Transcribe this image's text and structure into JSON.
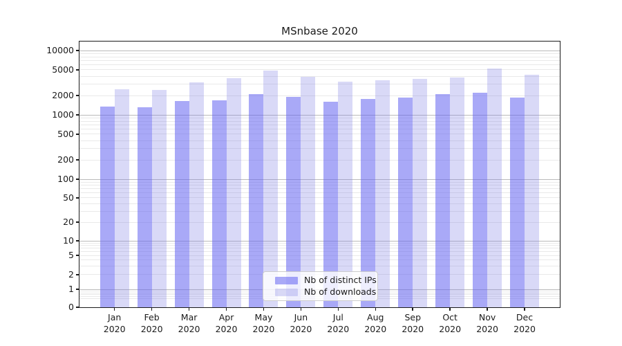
{
  "title": "MSnbase 2020",
  "chart_data": {
    "type": "bar",
    "title": "MSnbase 2020",
    "yscale": "symlog",
    "grid": "both",
    "grid_major_color": "#bababa",
    "grid_minor_color": "#e9e9e9",
    "legend_position": "lower center",
    "ylim": [
      0,
      14000
    ],
    "x_year": "2020",
    "x_months": [
      "Jan",
      "Feb",
      "Mar",
      "Apr",
      "May",
      "Jun",
      "Jul",
      "Aug",
      "Sep",
      "Oct",
      "Nov",
      "Dec"
    ],
    "y_tick_labels": [
      "0",
      "1",
      "2",
      "5",
      "10",
      "20",
      "50",
      "100",
      "200",
      "500",
      "1000",
      "2000",
      "5000",
      "10000"
    ],
    "series": [
      {
        "name": "Nb of distinct IPs",
        "color": "#6363f1",
        "alpha": 0.55,
        "perceived_color": "#a9a9f7",
        "values": [
          1350,
          1300,
          1640,
          1700,
          2100,
          1900,
          1600,
          1750,
          1850,
          2100,
          2200,
          1870
        ]
      },
      {
        "name": "Nb of downloads",
        "color": "#8080e4",
        "alpha": 0.3,
        "perceived_color": "#d9d9f7",
        "values": [
          2500,
          2450,
          3200,
          3700,
          4900,
          3900,
          3250,
          3450,
          3600,
          3800,
          5200,
          4200
        ]
      }
    ]
  }
}
